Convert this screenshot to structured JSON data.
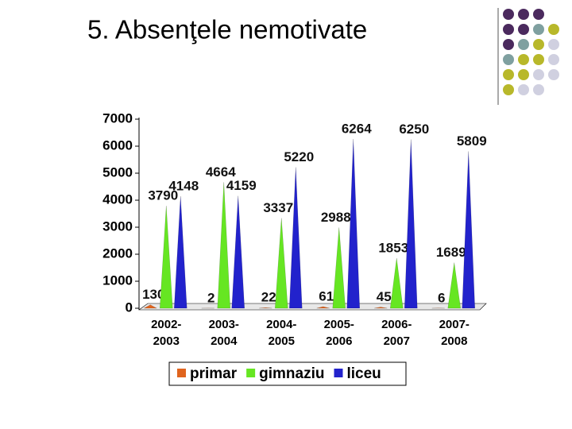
{
  "slide_title": "5. Absenţele nemotivate",
  "chart_data": {
    "type": "bar",
    "categories": [
      "2002-2003",
      "2003-2004",
      "2004-2005",
      "2005-2006",
      "2006-2007",
      "2007-2008"
    ],
    "series": [
      {
        "name": "primar",
        "color": "#e0641e",
        "values": [
          130,
          2,
          22,
          61,
          45,
          6
        ]
      },
      {
        "name": "gimnaziu",
        "color": "#66e622",
        "values": [
          3790,
          4664,
          3337,
          2988,
          1853,
          1689
        ]
      },
      {
        "name": "liceu",
        "color": "#2222cc",
        "values": [
          4148,
          4159,
          5220,
          6264,
          6250,
          5809
        ]
      }
    ],
    "ylim": [
      0,
      7000
    ],
    "yticks": [
      0,
      1000,
      2000,
      3000,
      4000,
      5000,
      6000,
      7000
    ]
  }
}
